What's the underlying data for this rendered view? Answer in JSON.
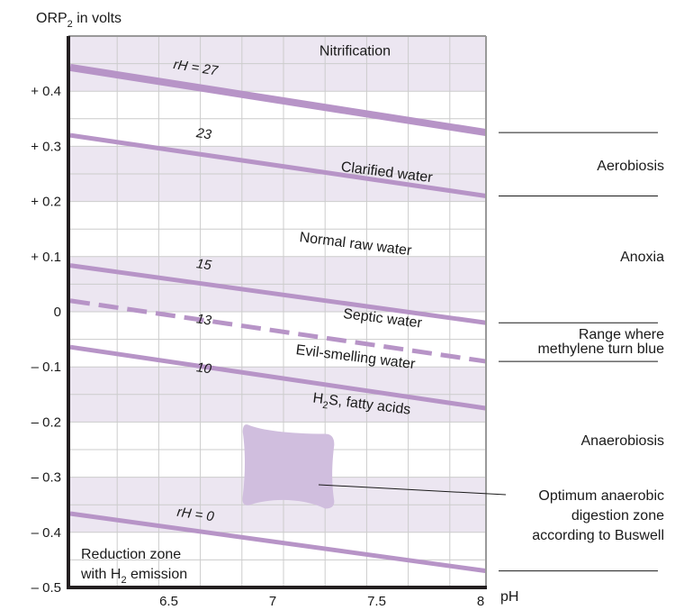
{
  "chart_data": {
    "type": "line",
    "title": "",
    "ylabel": "ORP",
    "ylabel_sub": "2",
    "ylabel_suffix": " in volts",
    "xlabel": "pH",
    "xlim": [
      6.0,
      8.0
    ],
    "ylim": [
      -0.5,
      0.5
    ],
    "grid": true,
    "x_ticks": [
      {
        "value": 6.5,
        "label": "6.5"
      },
      {
        "value": 7.0,
        "label": "7"
      },
      {
        "value": 7.5,
        "label": "7.5"
      },
      {
        "value": 8.0,
        "label": "8"
      }
    ],
    "x_grid_step": 0.2,
    "y_ticks": [
      {
        "value": 0.4,
        "label": "+ 0.4"
      },
      {
        "value": 0.3,
        "label": "+ 0.3"
      },
      {
        "value": 0.2,
        "label": "+ 0.2"
      },
      {
        "value": 0.1,
        "label": "+ 0.1"
      },
      {
        "value": 0.0,
        "label": "0"
      },
      {
        "value": -0.1,
        "label": "– 0.1"
      },
      {
        "value": -0.2,
        "label": "– 0.2"
      },
      {
        "value": -0.3,
        "label": "– 0.3"
      },
      {
        "value": -0.4,
        "label": "– 0.4"
      },
      {
        "value": -0.5,
        "label": "– 0.5"
      }
    ],
    "y_minor_step": 0.05,
    "shaded_bands": [
      {
        "from": 0.4,
        "to": 0.5
      },
      {
        "from": 0.2,
        "to": 0.3
      },
      {
        "from": 0.0,
        "to": 0.1
      },
      {
        "from": -0.2,
        "to": -0.1
      },
      {
        "from": -0.4,
        "to": -0.3
      }
    ],
    "series": [
      {
        "name": "rH = 27",
        "label": "rH  =  27",
        "x": [
          6.0,
          8.0
        ],
        "y": [
          0.443,
          0.325
        ],
        "style": "thick",
        "label_at": {
          "x": 6.6,
          "y": 0.435
        }
      },
      {
        "name": "rH = 23",
        "label": "23",
        "x": [
          6.0,
          8.0
        ],
        "y": [
          0.32,
          0.21
        ],
        "style": "solid",
        "label_at": {
          "x": 6.64,
          "y": 0.315
        }
      },
      {
        "name": "rH = 15",
        "label": "15",
        "x": [
          6.0,
          8.0
        ],
        "y": [
          0.084,
          -0.02
        ],
        "style": "solid",
        "label_at": {
          "x": 6.64,
          "y": 0.078
        }
      },
      {
        "name": "rH = 13",
        "label": "13",
        "x": [
          6.0,
          8.0
        ],
        "y": [
          0.02,
          -0.09
        ],
        "style": "dashed",
        "label_at": {
          "x": 6.64,
          "y": -0.022
        }
      },
      {
        "name": "rH = 10",
        "label": "10",
        "x": [
          6.0,
          8.0
        ],
        "y": [
          -0.064,
          -0.175
        ],
        "style": "solid",
        "label_at": {
          "x": 6.64,
          "y": -0.11
        }
      },
      {
        "name": "rH = 0",
        "label": "rH  =  0",
        "x": [
          6.0,
          8.0
        ],
        "y": [
          -0.366,
          -0.47
        ],
        "style": "solid",
        "label_at": {
          "x": 6.6,
          "y": -0.375
        }
      }
    ],
    "annotations": [
      {
        "text": "Nitrification",
        "x": 7.37,
        "y": 0.465,
        "rotate": 0
      },
      {
        "text": "Clarified water",
        "x": 7.52,
        "y": 0.245,
        "rotate": 7
      },
      {
        "text": "Normal raw water",
        "x": 7.37,
        "y": 0.115,
        "rotate": 7
      },
      {
        "text": "Septic water",
        "x": 7.5,
        "y": -0.02,
        "rotate": 7
      },
      {
        "text": "Evil-smelling water",
        "x": 7.37,
        "y": -0.09,
        "rotate": 7
      },
      {
        "text": "H",
        "sub": "2",
        "rest": "S, fatty acids",
        "x": 7.4,
        "y": -0.175,
        "rotate": 7
      }
    ],
    "optimum_zone": {
      "label": "Optimum anaerobic digestion zone according to Buswell",
      "ph_range": [
        6.83,
        7.27
      ],
      "orp_range": [
        -0.357,
        -0.205
      ]
    },
    "reduction_zone": {
      "line1": "Reduction zone",
      "line2_pre": "with H",
      "line2_sub": "2",
      "line2_post": " emission"
    },
    "side_zones": [
      {
        "label": "Aerobiosis",
        "top": 0.325,
        "bottom": 0.21
      },
      {
        "label": "Anoxia",
        "top": 0.21,
        "bottom": -0.02
      },
      {
        "label": "Range where methylene turn blue",
        "lines": [
          "Range where",
          "methylene turn blue"
        ],
        "top": -0.02,
        "bottom": -0.09
      },
      {
        "label": "Anaerobiosis",
        "top": -0.09,
        "bottom": -0.47
      }
    ],
    "side_separators": [
      0.325,
      0.21,
      -0.02,
      -0.09,
      -0.47
    ],
    "side_callout": {
      "lines": [
        "Optimum anaerobic",
        "digestion zone",
        "according to Buswell"
      ]
    },
    "colors": {
      "band": "#ece6f1",
      "line": "#b794c7",
      "blob": "#d0bede",
      "grid": "#cccccc",
      "axis": "#231f20",
      "frame": "#999999"
    }
  }
}
